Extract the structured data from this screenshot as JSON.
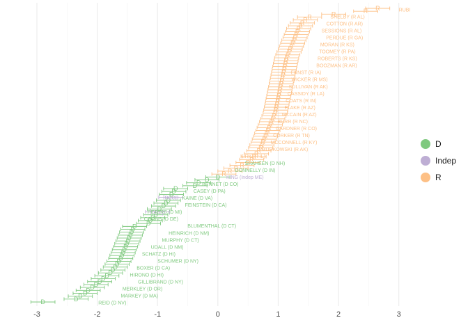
{
  "chart_data": {
    "type": "scatter",
    "title": "",
    "xlabel": "",
    "ylabel": "",
    "xlim": [
      -3.15,
      3.2
    ],
    "x_ticks": [
      -3,
      -2,
      -1,
      0,
      1,
      2,
      3
    ],
    "grid": true,
    "legend_position": "right",
    "error_bar_halfwidth": 0.2,
    "colors": {
      "D": "#7fc97f",
      "Indep": "#beaed4",
      "R": "#fdc086"
    },
    "series": [
      {
        "name": "D",
        "marker": "D",
        "points": [
          {
            "x": -2.9
          },
          {
            "x": -2.35
          },
          {
            "x": -2.28
          },
          {
            "x": -2.2
          },
          {
            "x": -2.15
          },
          {
            "x": -2.08
          },
          {
            "x": -2.02
          },
          {
            "x": -1.96
          },
          {
            "x": -1.9
          },
          {
            "x": -1.84
          },
          {
            "x": -1.78
          },
          {
            "x": -1.74
          },
          {
            "x": -1.7
          },
          {
            "x": -1.67
          },
          {
            "x": -1.64
          },
          {
            "x": -1.61
          },
          {
            "x": -1.59
          },
          {
            "x": -1.57
          },
          {
            "x": -1.55
          },
          {
            "x": -1.53
          },
          {
            "x": -1.51
          },
          {
            "x": -1.49
          },
          {
            "x": -1.47
          },
          {
            "x": -1.45
          },
          {
            "x": -1.43
          },
          {
            "x": -1.41
          },
          {
            "x": -1.38
          },
          {
            "x": -1.15
          },
          {
            "x": -1.12
          },
          {
            "x": -1.08
          },
          {
            "x": -1.03
          },
          {
            "x": -0.97
          },
          {
            "x": -0.9
          },
          {
            "x": -0.86
          },
          {
            "x": -0.82
          },
          {
            "x": -0.77
          },
          {
            "x": -0.73
          },
          {
            "x": -0.7
          },
          {
            "x": -0.38
          },
          {
            "x": -0.32
          },
          {
            "x": -0.18
          },
          {
            "x": 0.0
          }
        ]
      },
      {
        "name": "Indep",
        "marker": "Indep",
        "points": [
          {
            "x": -0.78
          },
          {
            "x": -1.0
          }
        ]
      },
      {
        "name": "R",
        "marker": "R",
        "points": [
          {
            "x": 0.1
          },
          {
            "x": 0.2
          },
          {
            "x": 0.3
          },
          {
            "x": 0.4
          },
          {
            "x": 0.5
          },
          {
            "x": 0.56
          },
          {
            "x": 0.6
          },
          {
            "x": 0.64
          },
          {
            "x": 0.68
          },
          {
            "x": 0.71
          },
          {
            "x": 0.73
          },
          {
            "x": 0.75
          },
          {
            "x": 0.77
          },
          {
            "x": 0.79
          },
          {
            "x": 0.81
          },
          {
            "x": 0.83
          },
          {
            "x": 0.85
          },
          {
            "x": 0.87
          },
          {
            "x": 0.89
          },
          {
            "x": 0.91
          },
          {
            "x": 0.93
          },
          {
            "x": 0.95
          },
          {
            "x": 0.96
          },
          {
            "x": 0.97
          },
          {
            "x": 0.98
          },
          {
            "x": 0.99
          },
          {
            "x": 1.0
          },
          {
            "x": 1.01
          },
          {
            "x": 1.02
          },
          {
            "x": 1.03
          },
          {
            "x": 1.04
          },
          {
            "x": 1.05
          },
          {
            "x": 1.06
          },
          {
            "x": 1.07
          },
          {
            "x": 1.08
          },
          {
            "x": 1.09
          },
          {
            "x": 1.1
          },
          {
            "x": 1.11
          },
          {
            "x": 1.12
          },
          {
            "x": 1.13
          },
          {
            "x": 1.14
          },
          {
            "x": 1.16
          },
          {
            "x": 1.18
          },
          {
            "x": 1.2
          },
          {
            "x": 1.22
          },
          {
            "x": 1.24
          },
          {
            "x": 1.26
          },
          {
            "x": 1.28
          },
          {
            "x": 1.3
          },
          {
            "x": 1.32
          },
          {
            "x": 1.34
          },
          {
            "x": 1.37
          },
          {
            "x": 1.4
          },
          {
            "x": 1.45
          },
          {
            "x": 1.52
          },
          {
            "x": 1.92
          },
          {
            "x": 2.45
          },
          {
            "x": 2.65
          }
        ]
      }
    ],
    "senator_labels": [
      {
        "text": "RUBI",
        "x": 3.0,
        "party": "R"
      },
      {
        "text": "SHELBY (R AL)",
        "x": 2.15,
        "party": "R"
      },
      {
        "text": "COTTON (R AR)",
        "x": 2.1,
        "party": "R"
      },
      {
        "text": "SESSIONS (R AL)",
        "x": 2.05,
        "party": "R"
      },
      {
        "text": "PERDUE (R GA)",
        "x": 2.1,
        "party": "R"
      },
      {
        "text": "MORAN (R KS)",
        "x": 1.98,
        "party": "R"
      },
      {
        "text": "TOOMEY (R PA)",
        "x": 1.98,
        "party": "R"
      },
      {
        "text": "ROBERTS (R KS)",
        "x": 1.98,
        "party": "R"
      },
      {
        "text": "BOOZMAN (R AR)",
        "x": 1.97,
        "party": "R"
      },
      {
        "text": "ERNST (R IA)",
        "x": 1.46,
        "party": "R"
      },
      {
        "text": "WICKER (R MS)",
        "x": 1.52,
        "party": "R"
      },
      {
        "text": "SULLIVAN (R AK)",
        "x": 1.5,
        "party": "R"
      },
      {
        "text": "CASSIDY (R LA)",
        "x": 1.46,
        "party": "R"
      },
      {
        "text": "COATS (R IN)",
        "x": 1.38,
        "party": "R"
      },
      {
        "text": "FLAKE (R AZ)",
        "x": 1.36,
        "party": "R"
      },
      {
        "text": "MCCAIN (R AZ)",
        "x": 1.35,
        "party": "R"
      },
      {
        "text": "BURR (R NC)",
        "x": 1.24,
        "party": "R"
      },
      {
        "text": "GARDNER (R CO)",
        "x": 1.3,
        "party": "R"
      },
      {
        "text": "CORKER (R TN)",
        "x": 1.22,
        "party": "R"
      },
      {
        "text": "MCCONNELL (R KY)",
        "x": 1.26,
        "party": "R"
      },
      {
        "text": "MURKOWSKI (R AK)",
        "x": 1.11,
        "party": "R"
      },
      {
        "text": "KIRK (R IL)",
        "x": 0.58,
        "party": "R"
      },
      {
        "text": "SHAHEEN (D NH)",
        "x": 0.78,
        "party": "D"
      },
      {
        "text": "DONNELLY (D IN)",
        "x": 0.62,
        "party": "D"
      },
      {
        "text": "KING (Indep ME)",
        "x": 0.45,
        "party": "Indep"
      },
      {
        "text": "BENNET (D CO)",
        "x": 0.04,
        "party": "D"
      },
      {
        "text": "CASEY (D PA)",
        "x": -0.14,
        "party": "D"
      },
      {
        "text": "KAINE (D VA)",
        "x": -0.34,
        "party": "D"
      },
      {
        "text": "FEINSTEIN (D CA)",
        "x": -0.2,
        "party": "D"
      },
      {
        "text": "PETERS (D MI)",
        "x": -0.88,
        "party": "D"
      },
      {
        "text": "COONS (D DE)",
        "x": -0.94,
        "party": "D"
      },
      {
        "text": "BLUMENTHAL (D CT)",
        "x": -0.1,
        "party": "D"
      },
      {
        "text": "HEINRICH (D NM)",
        "x": -0.48,
        "party": "D"
      },
      {
        "text": "MURPHY (D CT)",
        "x": -0.62,
        "party": "D"
      },
      {
        "text": "UDALL (D NM)",
        "x": -0.84,
        "party": "D"
      },
      {
        "text": "SCHATZ (D HI)",
        "x": -0.98,
        "party": "D"
      },
      {
        "text": "SCHUMER (D NY)",
        "x": -0.66,
        "party": "D"
      },
      {
        "text": "BOXER (D CA)",
        "x": -1.07,
        "party": "D"
      },
      {
        "text": "HIRONO (D HI)",
        "x": -1.18,
        "party": "D"
      },
      {
        "text": "GILLIBRAND (D NY)",
        "x": -0.95,
        "party": "D"
      },
      {
        "text": "MERKLEY (D OR)",
        "x": -1.25,
        "party": "D"
      },
      {
        "text": "MARKEY (D MA)",
        "x": -1.3,
        "party": "D"
      },
      {
        "text": "REID (D NV)",
        "x": -1.75,
        "party": "D"
      }
    ],
    "legend": [
      "D",
      "Indep",
      "R"
    ]
  }
}
